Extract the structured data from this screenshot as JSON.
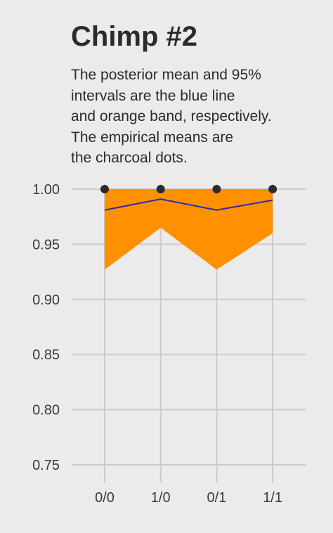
{
  "title": "Chimp #2",
  "subtitle": [
    "The posterior mean and 95%",
    "intervals are the blue line",
    "and orange band, respectively.",
    "The empirical means are",
    "the charcoal dots."
  ],
  "colors": {
    "background": "#ebebeb",
    "grid": "#cbcbcb",
    "band": "#ff9100",
    "mean_line": "#2a2ab0",
    "dots": "#2b2b2b",
    "text": "#2b2b2b"
  },
  "chart_data": {
    "type": "line",
    "title": "Chimp #2",
    "categories": [
      "0/0",
      "1/0",
      "0/1",
      "1/1"
    ],
    "ylim": [
      0.74,
      1.005
    ],
    "yticks": [
      1.0,
      0.95,
      0.9,
      0.85,
      0.8,
      0.75
    ],
    "ytick_labels": [
      "1.00",
      "0.95",
      "0.90",
      "0.85",
      "0.80",
      "0.75"
    ],
    "grid": true,
    "series": [
      {
        "kind": "mean_line",
        "values": [
          0.981,
          0.991,
          0.981,
          0.99
        ]
      },
      {
        "kind": "interval_lower",
        "values": [
          0.927,
          0.965,
          0.927,
          0.96
        ]
      },
      {
        "kind": "interval_upper",
        "values": [
          1.0,
          1.0,
          1.0,
          1.0
        ]
      },
      {
        "kind": "empirical_dots",
        "values": [
          1.0,
          1.0,
          1.0,
          1.0
        ]
      }
    ]
  }
}
